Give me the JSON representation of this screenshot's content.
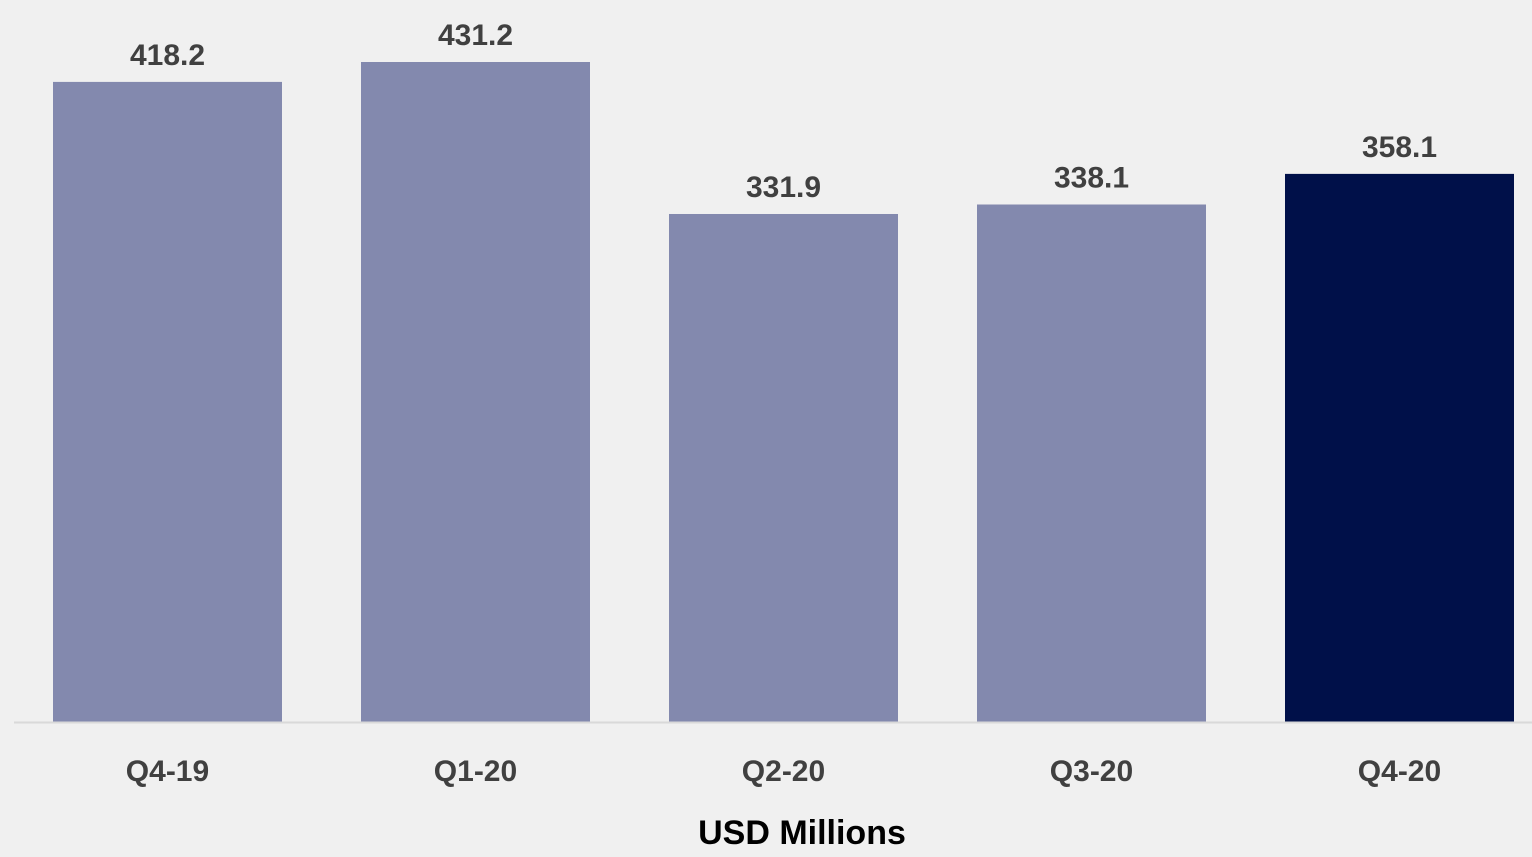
{
  "chart_data": {
    "type": "bar",
    "categories": [
      "Q4-19",
      "Q1-20",
      "Q2-20",
      "Q3-20",
      "Q4-20"
    ],
    "values": [
      418.2,
      431.2,
      331.9,
      338.1,
      358.1
    ],
    "value_labels": [
      "418.2",
      "431.2",
      "331.9",
      "338.1",
      "358.1"
    ],
    "xlabel": "USD Millions",
    "ylabel": "",
    "ylim": [
      0,
      431.2
    ],
    "grid": false,
    "colors": {
      "default_bar": "#8389ae",
      "highlight_bar": "#001049",
      "axis_line": "#d9d9d9",
      "label_text": "#404040",
      "background": "#f0f0f0"
    },
    "highlight_index": 4
  }
}
